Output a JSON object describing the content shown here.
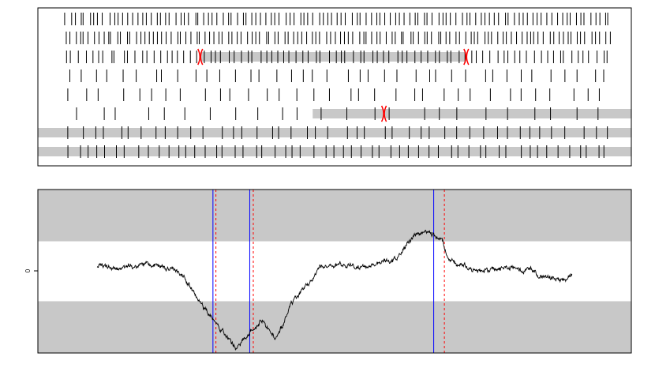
{
  "chart_data": [
    {
      "type": "event-raster",
      "rows": 8,
      "xlim": [
        0,
        1000
      ],
      "tick_color": "#000000",
      "shade_color": "#c8c8c8",
      "marker_color": "#ff0000",
      "spikes_per_row": [
        115,
        118,
        88,
        40,
        34,
        24,
        44,
        56
      ],
      "shaded_spans": [
        {
          "row": 3,
          "start": 250,
          "end": 735
        },
        {
          "row": 6,
          "start": 455,
          "end": 1000
        },
        {
          "row": 7,
          "start": 0,
          "end": 1000
        },
        {
          "row": 8,
          "start": 0,
          "end": 1000
        }
      ],
      "change_markers": [
        {
          "row": 3,
          "x": 250
        },
        {
          "row": 3,
          "x": 735
        },
        {
          "row": 6,
          "x": 585
        }
      ]
    },
    {
      "type": "line",
      "ylim": [
        -1.5,
        1.5
      ],
      "yticks": [
        0
      ],
      "ytick_labels": [
        "0"
      ],
      "band_color": "#c8c8c8",
      "line_color": "#000000",
      "band": {
        "lower": -0.55,
        "upper": 0.55
      },
      "series": [
        {
          "anchors_x": [
            0,
            40,
            80,
            125,
            145,
            170,
            200,
            235,
            260,
            280,
            300,
            330,
            380,
            410,
            440,
            470,
            500,
            530,
            560,
            580,
            600,
            640,
            690,
            720,
            750,
            780,
            800
          ],
          "anchors_y": [
            0.1,
            0.05,
            0.12,
            0.05,
            -0.08,
            -0.55,
            -0.95,
            -1.45,
            -1.05,
            -0.9,
            -1.25,
            -0.55,
            0.1,
            0.12,
            0.05,
            0.12,
            0.2,
            0.6,
            0.72,
            0.55,
            0.15,
            0.0,
            0.05,
            0.05,
            -0.1,
            -0.15,
            -0.05
          ],
          "x_range": [
            100,
            900
          ],
          "points": 1200,
          "noise": 0.03
        }
      ],
      "vlines": [
        {
          "x": 295,
          "style": "solid",
          "color": "#0000ff"
        },
        {
          "x": 300,
          "style": "dashed",
          "color": "#ff0000"
        },
        {
          "x": 357,
          "style": "solid",
          "color": "#0000ff"
        },
        {
          "x": 363,
          "style": "dashed",
          "color": "#ff0000"
        },
        {
          "x": 667,
          "style": "solid",
          "color": "#0000ff"
        },
        {
          "x": 685,
          "style": "dashed",
          "color": "#ff0000"
        }
      ]
    }
  ]
}
